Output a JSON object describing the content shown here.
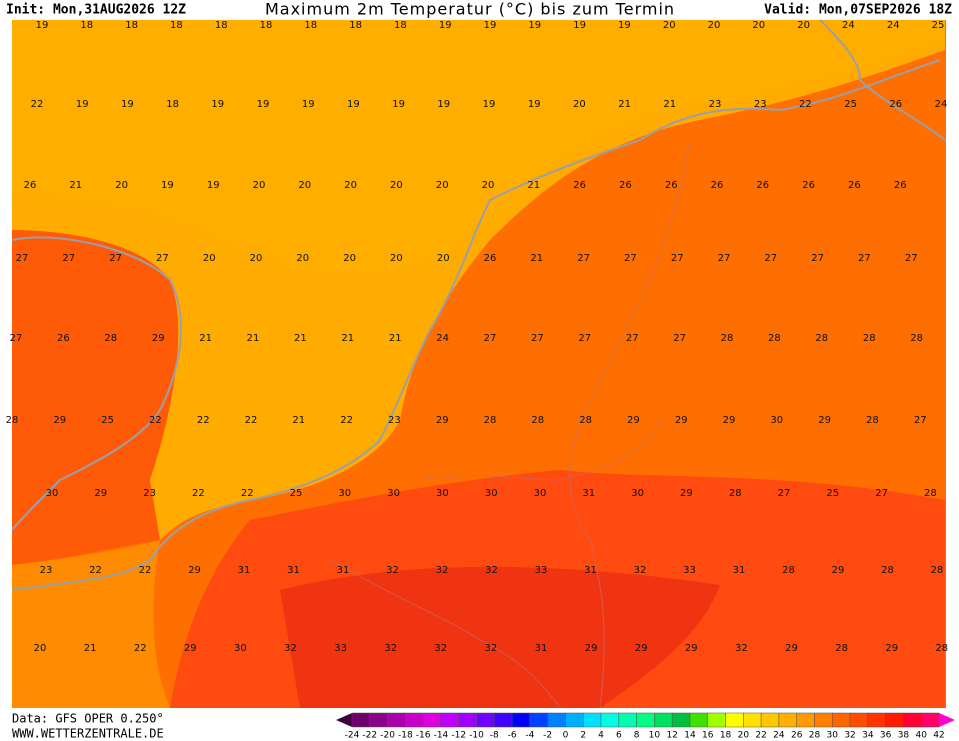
{
  "header": {
    "init": "Init: Mon,31AUG2026 12Z",
    "title": "Maximum 2m Temperatur (°C) bis zum Termin",
    "valid": "Valid: Mon,07SEP2026 18Z"
  },
  "map": {
    "rows": [
      [
        19,
        18,
        18,
        18,
        18,
        18,
        18,
        18,
        18,
        19,
        19,
        19,
        19,
        19,
        20,
        20,
        20,
        20,
        24,
        24,
        25
      ],
      [
        22,
        19,
        19,
        18,
        19,
        19,
        19,
        19,
        19,
        19,
        19,
        19,
        20,
        21,
        21,
        23,
        23,
        22,
        25,
        26,
        24
      ],
      [
        26,
        21,
        20,
        19,
        19,
        20,
        20,
        20,
        20,
        20,
        20,
        21,
        26,
        26,
        26,
        26,
        26,
        26,
        26,
        26
      ],
      [
        27,
        27,
        27,
        27,
        20,
        20,
        20,
        20,
        20,
        20,
        26,
        21,
        27,
        27,
        27,
        27,
        27,
        27,
        27,
        27
      ],
      [
        27,
        26,
        28,
        29,
        21,
        21,
        21,
        21,
        21,
        24,
        27,
        27,
        27,
        27,
        27,
        28,
        28,
        28,
        28,
        28
      ],
      [
        28,
        29,
        25,
        22,
        22,
        22,
        21,
        22,
        23,
        29,
        28,
        28,
        28,
        29,
        29,
        29,
        30,
        29,
        28,
        27
      ],
      [
        30,
        29,
        23,
        22,
        22,
        25,
        30,
        30,
        30,
        30,
        30,
        31,
        30,
        29,
        28,
        27,
        25,
        27,
        28
      ],
      [
        23,
        22,
        22,
        29,
        31,
        31,
        31,
        32,
        32,
        32,
        33,
        31,
        32,
        33,
        31,
        28,
        29,
        28,
        28
      ],
      [
        20,
        21,
        22,
        29,
        30,
        32,
        33,
        32,
        32,
        32,
        31,
        29,
        29,
        29,
        32,
        29,
        28,
        29,
        28
      ]
    ]
  },
  "colorbar": {
    "ticks": [
      -24,
      -22,
      -20,
      -18,
      -16,
      -14,
      -12,
      -10,
      -8,
      -6,
      -4,
      -2,
      0,
      2,
      4,
      6,
      8,
      10,
      12,
      14,
      16,
      18,
      20,
      22,
      24,
      26,
      28,
      30,
      32,
      34,
      36,
      38,
      40,
      42
    ],
    "colors": [
      "#3c003c",
      "#6e006e",
      "#8a008a",
      "#a800a8",
      "#c800c8",
      "#e000e0",
      "#c000ff",
      "#a000ff",
      "#7000ff",
      "#4000ff",
      "#0000ff",
      "#0040ff",
      "#0080ff",
      "#00b0ff",
      "#00e0ff",
      "#00ffe0",
      "#00ffb0",
      "#00ff80",
      "#00e060",
      "#00c040",
      "#40e000",
      "#a0ff00",
      "#ffff00",
      "#ffe000",
      "#ffc800",
      "#ffb000",
      "#ff9900",
      "#ff8000",
      "#ff6600",
      "#ff4d00",
      "#ff3300",
      "#ff1a00",
      "#ff0033",
      "#ff0066",
      "#ff00cc"
    ]
  },
  "footer": {
    "source": "Data: GFS OPER 0.250°",
    "site": "WWW.WETTERZENTRALE.DE"
  }
}
